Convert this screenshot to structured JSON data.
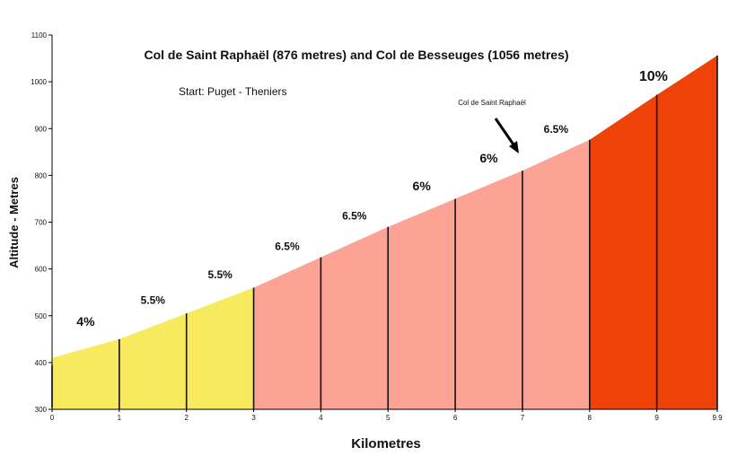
{
  "chart_data": {
    "type": "area",
    "title": "Col de Saint Raphaël (876 metres) and Col de Besseuges (1056 metres)",
    "subtitle": "Start: Puget - Theniers",
    "xlabel": "Kilometres",
    "ylabel": "Altitude - Metres",
    "xlim": [
      0,
      9.9
    ],
    "ylim": [
      300,
      1100
    ],
    "y_ticks": [
      300,
      400,
      500,
      600,
      700,
      800,
      900,
      1000,
      1100
    ],
    "x_ticks": [
      0,
      1,
      2,
      3,
      4,
      5,
      6,
      7,
      8,
      9,
      9.9
    ],
    "x_tick_labels": [
      "0",
      "1",
      "2",
      "3",
      "4",
      "5",
      "6",
      "7",
      "8",
      "9",
      "9.9"
    ],
    "points": [
      {
        "km": 0,
        "alt": 410
      },
      {
        "km": 1,
        "alt": 450
      },
      {
        "km": 2,
        "alt": 505
      },
      {
        "km": 3,
        "alt": 560
      },
      {
        "km": 4,
        "alt": 625
      },
      {
        "km": 5,
        "alt": 690
      },
      {
        "km": 6,
        "alt": 750
      },
      {
        "km": 7,
        "alt": 810
      },
      {
        "km": 8,
        "alt": 876
      },
      {
        "km": 9,
        "alt": 972
      },
      {
        "km": 9.9,
        "alt": 1056
      }
    ],
    "segments": [
      {
        "from": 0,
        "to": 1,
        "gradient": "4%",
        "color": "#f7ea5e"
      },
      {
        "from": 1,
        "to": 2,
        "gradient": "5.5%",
        "color": "#f7ea5e"
      },
      {
        "from": 2,
        "to": 3,
        "gradient": "5.5%",
        "color": "#f7ea5e"
      },
      {
        "from": 3,
        "to": 4,
        "gradient": "6.5%",
        "color": "#fca396"
      },
      {
        "from": 4,
        "to": 5,
        "gradient": "6.5%",
        "color": "#fca396"
      },
      {
        "from": 5,
        "to": 6,
        "gradient": "6%",
        "color": "#fca396"
      },
      {
        "from": 6,
        "to": 7,
        "gradient": "6%",
        "color": "#fca396"
      },
      {
        "from": 7,
        "to": 8,
        "gradient": "6.5%",
        "color": "#fca396"
      },
      {
        "from": 8,
        "to": 9.9,
        "gradient": "10%",
        "color": "#ee4209"
      }
    ],
    "annotation": {
      "text": "Col de Saint Raphaël",
      "km": 7,
      "alt": 876
    }
  }
}
